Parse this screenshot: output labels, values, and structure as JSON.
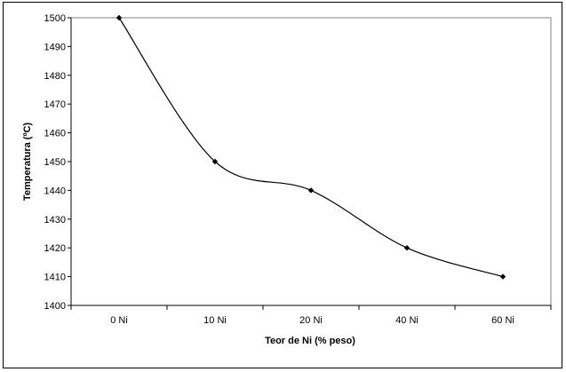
{
  "chart_data": {
    "type": "line",
    "title": "",
    "xlabel": "Teor de Ni (% peso)",
    "ylabel": "Temperatura (ºC)",
    "categories": [
      "0 Ni",
      "10 Ni",
      "20 Ni",
      "40 Ni",
      "60 Ni"
    ],
    "series": [
      {
        "values": [
          1500,
          1450,
          1440,
          1420,
          1410
        ]
      }
    ],
    "ylim": [
      1400,
      1500
    ],
    "yticks": [
      1400,
      1410,
      1420,
      1430,
      1440,
      1450,
      1460,
      1470,
      1480,
      1490,
      1500
    ],
    "grid": false,
    "legend": "none",
    "line_color": "#000000",
    "smoothed": true
  }
}
